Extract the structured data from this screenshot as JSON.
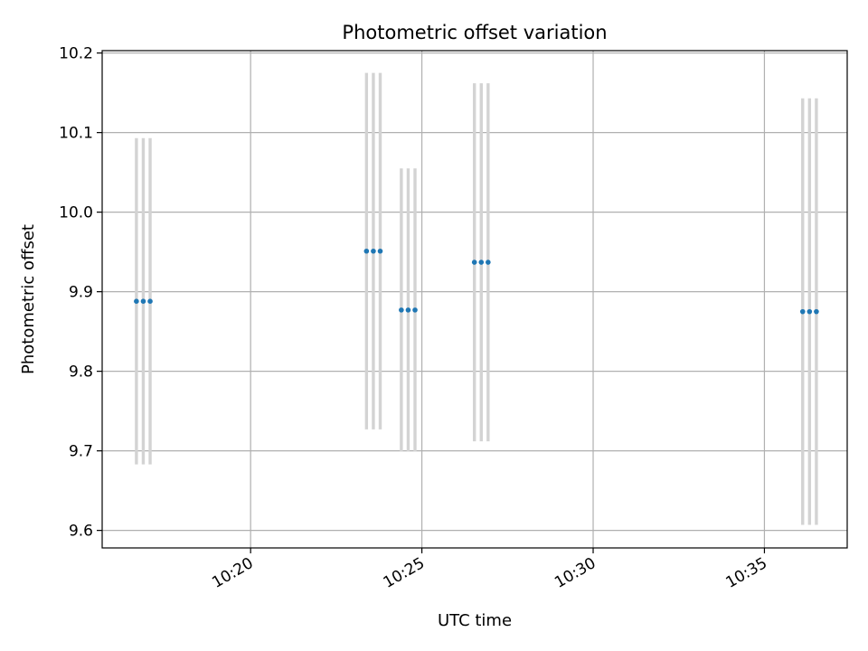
{
  "chart_data": {
    "type": "scatter",
    "title": "Photometric offset variation",
    "xlabel": "UTC time",
    "ylabel": "Photometric offset",
    "x_tick_labels": [
      "10:20",
      "10:25",
      "10:30",
      "10:35"
    ],
    "x_ticks": [
      "10:20",
      "10:25",
      "10:30",
      "10:35"
    ],
    "y_tick_labels": [
      "9.6",
      "9.7",
      "9.8",
      "9.9",
      "10.0",
      "10.1",
      "10.2"
    ],
    "y_ticks": [
      9.6,
      9.7,
      9.8,
      9.9,
      10.0,
      10.1,
      10.2
    ],
    "xlim": [
      "10:15:40",
      "10:37:25"
    ],
    "ylim": [
      9.578,
      10.203
    ],
    "grid": true,
    "errorbar_color": "#d3d3d3",
    "marker_color": "#1f77b4",
    "points": [
      {
        "x": "10:16:40",
        "y": 9.888,
        "yerr": 0.205
      },
      {
        "x": "10:16:52",
        "y": 9.888,
        "yerr": 0.205
      },
      {
        "x": "10:17:04",
        "y": 9.888,
        "yerr": 0.205
      },
      {
        "x": "10:23:23",
        "y": 9.951,
        "yerr": 0.224
      },
      {
        "x": "10:23:35",
        "y": 9.951,
        "yerr": 0.224
      },
      {
        "x": "10:23:47",
        "y": 9.951,
        "yerr": 0.224
      },
      {
        "x": "10:24:24",
        "y": 9.877,
        "yerr": 0.178
      },
      {
        "x": "10:24:36",
        "y": 9.877,
        "yerr": 0.178
      },
      {
        "x": "10:24:48",
        "y": 9.877,
        "yerr": 0.178
      },
      {
        "x": "10:26:32",
        "y": 9.937,
        "yerr": 0.225
      },
      {
        "x": "10:26:44",
        "y": 9.937,
        "yerr": 0.225
      },
      {
        "x": "10:26:56",
        "y": 9.937,
        "yerr": 0.225
      },
      {
        "x": "10:36:07",
        "y": 9.875,
        "yerr": 0.268
      },
      {
        "x": "10:36:19",
        "y": 9.875,
        "yerr": 0.268
      },
      {
        "x": "10:36:31",
        "y": 9.875,
        "yerr": 0.268
      }
    ]
  }
}
